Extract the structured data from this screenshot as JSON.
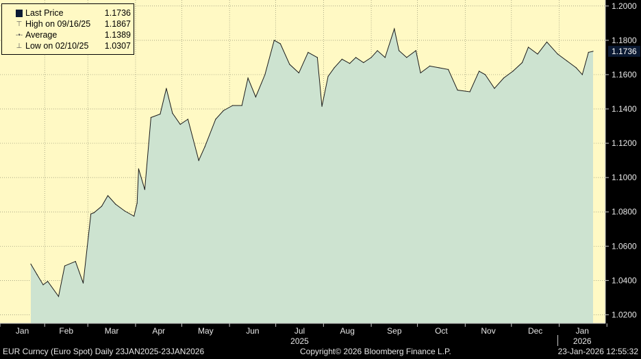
{
  "legend": {
    "last_label": "Last Price",
    "last_value": "1.1736",
    "high_label": "High on 09/16/25",
    "high_value": "1.1867",
    "avg_label": "Average",
    "avg_value": "1.1389",
    "low_label": "Low on 02/10/25",
    "low_value": "1.0307"
  },
  "footer": {
    "left": "EUR Curncy (Euro Spot) Daily 23JAN2025-23JAN2026",
    "center": "Copyright© 2026 Bloomberg Finance L.P.",
    "right": "23-Jan-2026 12:55:32"
  },
  "colors": {
    "background": "#fff9c4",
    "area_fill": "#cde3d0",
    "line": "#1a1a1a",
    "last_price_badge": "#0b1a33"
  },
  "chart_data": {
    "type": "area",
    "title": "",
    "xlabel": "",
    "ylabel": "",
    "ylim": [
      1.015,
      1.2035
    ],
    "grid": true,
    "y_axis_side": "right",
    "yticks": [
      "1.2000",
      "1.1800",
      "1.1600",
      "1.1400",
      "1.1200",
      "1.1000",
      "1.0800",
      "1.0600",
      "1.0400",
      "1.0200"
    ],
    "month_labels": [
      "Jan",
      "Feb",
      "Mar",
      "Apr",
      "May",
      "Jun",
      "Jul",
      "Aug",
      "Sep",
      "Oct",
      "Nov",
      "Dec",
      "Jan"
    ],
    "year_labels": [
      "2025",
      "2026"
    ],
    "last_price_label": "1.1736",
    "x": [
      "2025-01-23",
      "2025-01-27",
      "2025-01-31",
      "2025-02-03",
      "2025-02-10",
      "2025-02-14",
      "2025-02-21",
      "2025-02-26",
      "2025-03-03",
      "2025-03-05",
      "2025-03-10",
      "2025-03-14",
      "2025-03-19",
      "2025-03-25",
      "2025-03-31",
      "2025-04-02",
      "2025-04-03",
      "2025-04-07",
      "2025-04-11",
      "2025-04-17",
      "2025-04-21",
      "2025-04-25",
      "2025-04-30",
      "2025-05-05",
      "2025-05-12",
      "2025-05-16",
      "2025-05-23",
      "2025-05-28",
      "2025-06-03",
      "2025-06-09",
      "2025-06-13",
      "2025-06-18",
      "2025-06-24",
      "2025-06-30",
      "2025-07-04",
      "2025-07-10",
      "2025-07-16",
      "2025-07-22",
      "2025-07-28",
      "2025-07-31",
      "2025-08-04",
      "2025-08-08",
      "2025-08-13",
      "2025-08-18",
      "2025-08-22",
      "2025-08-27",
      "2025-09-01",
      "2025-09-05",
      "2025-09-10",
      "2025-09-16",
      "2025-09-19",
      "2025-09-24",
      "2025-09-30",
      "2025-10-03",
      "2025-10-09",
      "2025-10-15",
      "2025-10-21",
      "2025-10-27",
      "2025-11-04",
      "2025-11-10",
      "2025-11-14",
      "2025-11-20",
      "2025-11-26",
      "2025-12-02",
      "2025-12-08",
      "2025-12-12",
      "2025-12-18",
      "2025-12-24",
      "2025-12-31",
      "2026-01-06",
      "2026-01-12",
      "2026-01-16",
      "2026-01-20",
      "2026-01-23"
    ],
    "series": [
      {
        "values": [
          1.0496,
          1.0435,
          1.0375,
          1.0395,
          1.0307,
          1.0485,
          1.0511,
          1.0385,
          1.0788,
          1.0795,
          1.0833,
          1.0895,
          1.0845,
          1.0805,
          1.0775,
          1.0851,
          1.1051,
          1.093,
          1.135,
          1.137,
          1.152,
          1.1375,
          1.131,
          1.134,
          1.11,
          1.118,
          1.134,
          1.139,
          1.142,
          1.142,
          1.158,
          1.147,
          1.16,
          1.18,
          1.178,
          1.166,
          1.161,
          1.173,
          1.17,
          1.1415,
          1.159,
          1.164,
          1.169,
          1.1665,
          1.17,
          1.167,
          1.17,
          1.174,
          1.17,
          1.1867,
          1.174,
          1.17,
          1.174,
          1.161,
          1.165,
          1.164,
          1.163,
          1.151,
          1.15,
          1.162,
          1.16,
          1.152,
          1.158,
          1.162,
          1.167,
          1.176,
          1.172,
          1.179,
          1.172,
          1.168,
          1.164,
          1.16,
          1.173,
          1.1736
        ]
      }
    ]
  }
}
